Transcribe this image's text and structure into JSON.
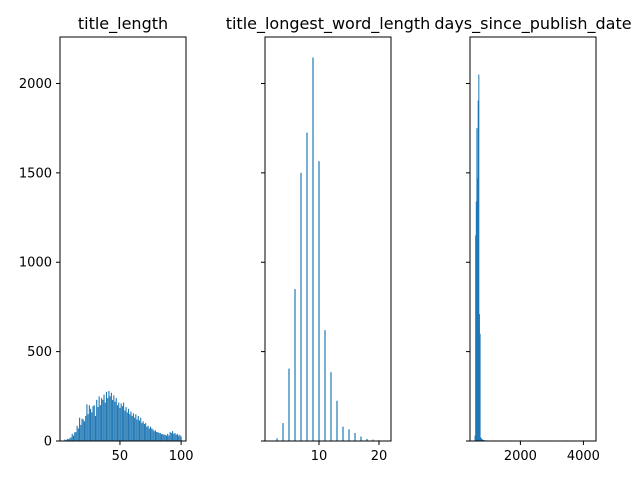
{
  "chart_data": [
    {
      "type": "bar",
      "title": "title_length",
      "xlabel": "",
      "ylabel": "",
      "xlim": [
        1,
        104
      ],
      "ylim": [
        0,
        2260
      ],
      "x_ticks": [
        50,
        100
      ],
      "y_ticks": [
        0,
        500,
        1000,
        1500,
        2000
      ],
      "grid": false,
      "color": "#1f77b4",
      "x": [
        5,
        6,
        7,
        8,
        9,
        10,
        11,
        12,
        13,
        14,
        15,
        16,
        17,
        18,
        19,
        20,
        21,
        22,
        23,
        24,
        25,
        26,
        27,
        28,
        29,
        30,
        31,
        32,
        33,
        34,
        35,
        36,
        37,
        38,
        39,
        40,
        41,
        42,
        43,
        44,
        45,
        46,
        47,
        48,
        49,
        50,
        51,
        52,
        53,
        54,
        55,
        56,
        57,
        58,
        59,
        60,
        61,
        62,
        63,
        64,
        65,
        66,
        67,
        68,
        69,
        70,
        71,
        72,
        73,
        74,
        75,
        76,
        77,
        78,
        79,
        80,
        81,
        82,
        83,
        84,
        85,
        86,
        87,
        88,
        89,
        90,
        91,
        92,
        93,
        94,
        95,
        96,
        97,
        98,
        99,
        100
      ],
      "values": [
        8,
        5,
        12,
        10,
        15,
        20,
        40,
        30,
        48,
        50,
        85,
        70,
        130,
        90,
        125,
        120,
        110,
        140,
        205,
        150,
        200,
        180,
        160,
        195,
        200,
        140,
        230,
        190,
        250,
        200,
        240,
        230,
        260,
        215,
        275,
        240,
        280,
        250,
        270,
        230,
        255,
        220,
        240,
        200,
        215,
        185,
        210,
        195,
        215,
        170,
        190,
        160,
        180,
        150,
        165,
        140,
        155,
        130,
        150,
        120,
        140,
        115,
        130,
        100,
        110,
        95,
        100,
        80,
        85,
        70,
        80,
        70,
        65,
        55,
        60,
        50,
        50,
        45,
        45,
        38,
        40,
        35,
        35,
        30,
        40,
        30,
        50,
        45,
        55,
        40,
        45,
        35,
        40,
        30,
        35,
        25
      ]
    },
    {
      "type": "bar",
      "title": "title_longest_word_length",
      "xlabel": "",
      "ylabel": "",
      "xlim": [
        1,
        22
      ],
      "ylim": [
        0,
        2260
      ],
      "x_ticks": [
        10,
        20
      ],
      "grid": false,
      "color": "#1f77b4",
      "x": [
        3,
        4,
        5,
        6,
        7,
        8,
        9,
        10,
        11,
        12,
        13,
        14,
        15,
        16,
        17,
        18,
        19,
        20
      ],
      "values": [
        15,
        100,
        405,
        850,
        1500,
        1725,
        2145,
        1565,
        620,
        385,
        225,
        80,
        65,
        45,
        25,
        12,
        8,
        4
      ]
    },
    {
      "type": "bar",
      "title": "days_since_publish_date",
      "xlabel": "",
      "ylabel": "",
      "xlim": [
        400,
        4400
      ],
      "ylim": [
        0,
        2260
      ],
      "x_ticks": [
        2000,
        4000
      ],
      "grid": false,
      "color": "#1f77b4",
      "x": [
        560,
        580,
        600,
        620,
        640,
        660,
        680,
        700,
        720,
        740,
        760,
        780,
        800,
        820,
        840,
        860,
        880,
        900,
        960,
        1100,
        1200,
        1400,
        1700,
        2000,
        2500,
        3000,
        3500,
        4000,
        4200
      ],
      "values": [
        30,
        1150,
        1340,
        1750,
        1470,
        1905,
        2050,
        710,
        600,
        20,
        15,
        10,
        8,
        6,
        5,
        4,
        3,
        2,
        2,
        2,
        2,
        1,
        1,
        1,
        1,
        1,
        1,
        1,
        1
      ]
    }
  ]
}
